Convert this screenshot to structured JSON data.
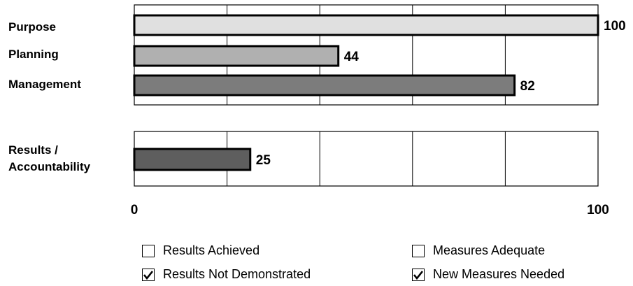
{
  "chart_data": {
    "type": "bar",
    "orientation": "horizontal",
    "panels": [
      {
        "categories": [
          "Purpose",
          "Planning",
          "Management"
        ],
        "values": [
          100,
          44,
          82
        ],
        "colors": [
          "#e0e0e0",
          "#b0b0b0",
          "#7c7c7c"
        ]
      },
      {
        "categories": [
          "Results / Accountability"
        ],
        "category_lines": [
          [
            "Results /",
            "Accountability"
          ]
        ],
        "values": [
          25
        ],
        "colors": [
          "#5e5e5e"
        ]
      }
    ],
    "xlim": [
      0,
      100
    ],
    "tick_labels": [
      "0",
      "100"
    ],
    "grid": true
  },
  "legend": {
    "items": [
      {
        "label": "Results Achieved",
        "checked": false,
        "icon": "checkbox-empty-icon"
      },
      {
        "label": "Measures Adequate",
        "checked": false,
        "icon": "checkbox-empty-icon"
      },
      {
        "label": "Results Not Demonstrated",
        "checked": true,
        "icon": "checkbox-checked-icon"
      },
      {
        "label": "New Measures Needed",
        "checked": true,
        "icon": "checkbox-checked-icon"
      }
    ]
  }
}
